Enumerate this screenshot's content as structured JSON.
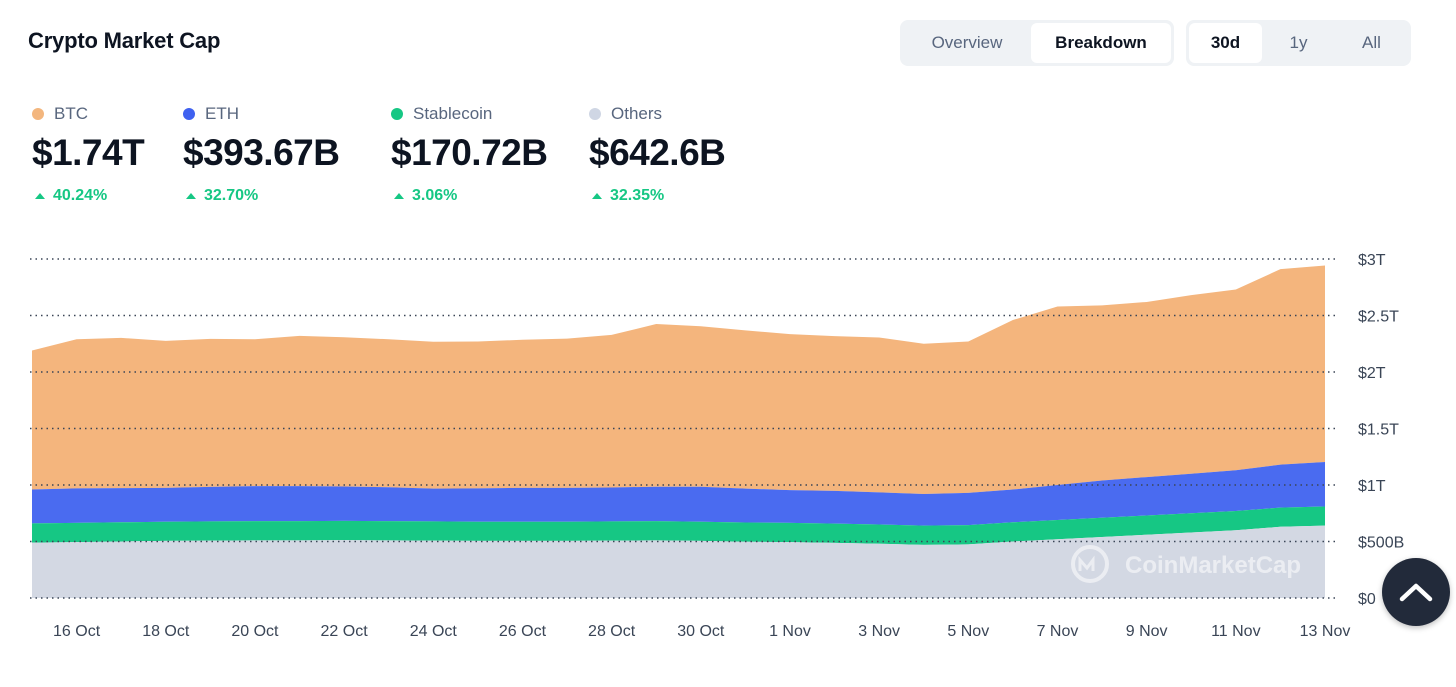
{
  "header": {
    "title": "Crypto Market Cap"
  },
  "view_tabs": [
    {
      "label": "Overview",
      "active": false
    },
    {
      "label": "Breakdown",
      "active": true
    }
  ],
  "range_tabs": [
    {
      "label": "30d",
      "active": true
    },
    {
      "label": "1y",
      "active": false
    },
    {
      "label": "All",
      "active": false
    }
  ],
  "stats": [
    {
      "name": "BTC",
      "value": "$1.74T",
      "change": "40.24%",
      "color": "#f4b57d",
      "dot_color": "#f3b67e"
    },
    {
      "name": "ETH",
      "value": "$393.67B",
      "change": "32.70%",
      "color": "#4a6bf0",
      "dot_color": "#3f61f0"
    },
    {
      "name": "Stablecoin",
      "value": "$170.72B",
      "change": "3.06%",
      "color": "#16c784",
      "dot_color": "#16c784"
    },
    {
      "name": "Others",
      "value": "$642.6B",
      "change": "32.35%",
      "color": "#d3d8e3",
      "dot_color": "#cfd6e4"
    }
  ],
  "watermark": "CoinMarketCap",
  "scroll_top_icon": "chevron-up-icon",
  "chart_data": {
    "type": "area",
    "stacked": true,
    "x": [
      "15 Oct",
      "16 Oct",
      "17 Oct",
      "18 Oct",
      "19 Oct",
      "20 Oct",
      "21 Oct",
      "22 Oct",
      "23 Oct",
      "24 Oct",
      "25 Oct",
      "26 Oct",
      "27 Oct",
      "28 Oct",
      "29 Oct",
      "30 Oct",
      "31 Oct",
      "1 Nov",
      "2 Nov",
      "3 Nov",
      "4 Nov",
      "5 Nov",
      "6 Nov",
      "7 Nov",
      "8 Nov",
      "9 Nov",
      "10 Nov",
      "11 Nov",
      "12 Nov",
      "13 Nov"
    ],
    "x_ticks": [
      "16 Oct",
      "18 Oct",
      "20 Oct",
      "22 Oct",
      "24 Oct",
      "26 Oct",
      "28 Oct",
      "30 Oct",
      "1 Nov",
      "3 Nov",
      "5 Nov",
      "7 Nov",
      "9 Nov",
      "11 Nov",
      "13 Nov"
    ],
    "series": [
      {
        "name": "Others",
        "color": "#d3d8e3",
        "values": [
          490,
          495,
          500,
          505,
          508,
          510,
          510,
          512,
          510,
          508,
          505,
          505,
          505,
          508,
          510,
          505,
          498,
          495,
          488,
          480,
          470,
          475,
          500,
          520,
          540,
          560,
          580,
          600,
          630,
          640
        ]
      },
      {
        "name": "Stablecoin",
        "values": [
          170,
          170,
          170,
          170,
          170,
          170,
          170,
          170,
          170,
          170,
          170,
          170,
          170,
          170,
          170,
          170,
          170,
          170,
          170,
          170,
          170,
          170,
          170,
          170,
          170,
          170,
          170,
          170,
          170,
          170
        ]
      },
      {
        "name": "ETH",
        "values": [
          300,
          305,
          302,
          300,
          305,
          310,
          310,
          305,
          300,
          290,
          295,
          300,
          300,
          300,
          305,
          310,
          300,
          290,
          290,
          285,
          280,
          285,
          290,
          310,
          330,
          340,
          350,
          360,
          380,
          393
        ]
      },
      {
        "name": "BTC",
        "values": [
          1230,
          1320,
          1330,
          1300,
          1310,
          1300,
          1330,
          1320,
          1310,
          1300,
          1300,
          1310,
          1320,
          1350,
          1440,
          1420,
          1400,
          1380,
          1370,
          1370,
          1330,
          1340,
          1500,
          1580,
          1550,
          1550,
          1580,
          1600,
          1730,
          1740
        ]
      }
    ],
    "y_ticks": [
      "$0",
      "$500B",
      "$1T",
      "$1.5T",
      "$2T",
      "$2.5T",
      "$3T"
    ],
    "ylim": [
      0,
      3000
    ],
    "ylabel": "",
    "xlabel": "",
    "grid": true,
    "legend": "top"
  }
}
